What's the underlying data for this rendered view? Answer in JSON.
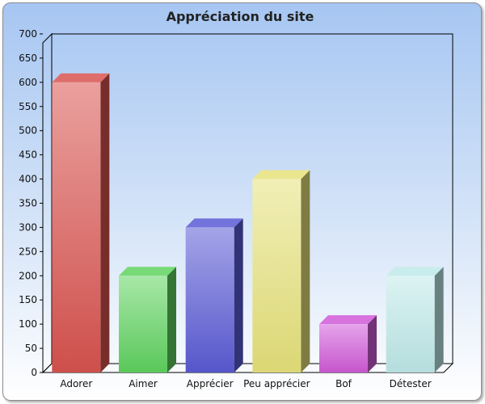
{
  "chart_data": {
    "type": "bar",
    "title": "Appréciation du site",
    "categories": [
      "Adorer",
      "Aimer",
      "Apprécier",
      "Peu apprécier",
      "Bof",
      "Détester"
    ],
    "values": [
      600,
      200,
      300,
      400,
      100,
      200
    ],
    "colors": [
      "#d9534f",
      "#5fd35f",
      "#5a5ad6",
      "#e6e27a",
      "#d05ad8",
      "#bfe9e9"
    ],
    "ylim": [
      0,
      700
    ],
    "yticks": [
      "0",
      "50",
      "100",
      "150",
      "200",
      "250",
      "300",
      "350",
      "400",
      "450",
      "500",
      "550",
      "600",
      "650",
      "700"
    ],
    "grid": false,
    "legend": "none"
  }
}
